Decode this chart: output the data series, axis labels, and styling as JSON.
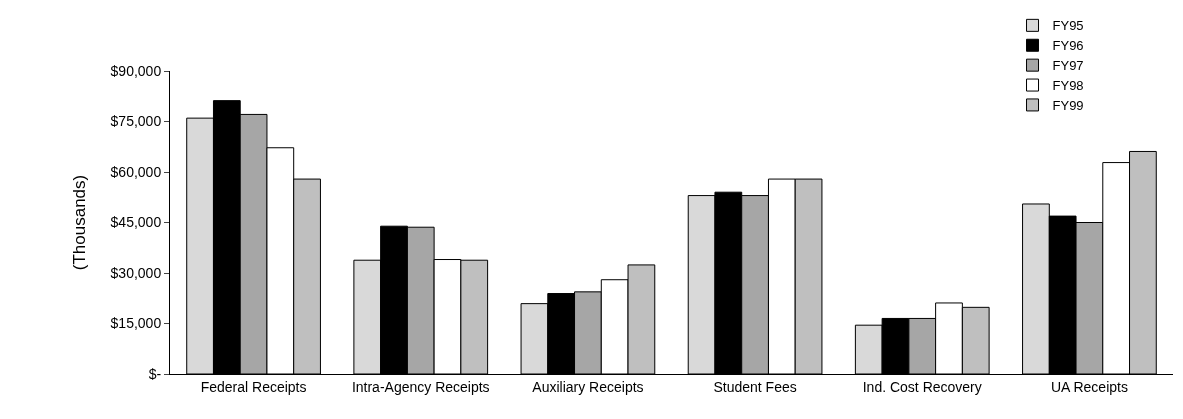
{
  "chart_data": {
    "type": "bar",
    "ylabel": "(Thousands)",
    "categories": [
      "Federal Receipts",
      "Intra-Agency Receipts",
      "Auxiliary Receipts",
      "Student Fees",
      "Ind. Cost Recovery",
      "UA Receipts"
    ],
    "series": [
      {
        "name": "FY95",
        "color": "#d9d9d9",
        "values": [
          76000,
          33800,
          20900,
          53000,
          14500,
          50500
        ]
      },
      {
        "name": "FY96",
        "color": "#000000",
        "values": [
          81200,
          43900,
          23900,
          54000,
          16500,
          46900
        ]
      },
      {
        "name": "FY97",
        "color": "#a6a6a6",
        "values": [
          77100,
          43600,
          24400,
          53000,
          16500,
          45000
        ]
      },
      {
        "name": "FY98",
        "color": "#ffffff",
        "values": [
          67200,
          34000,
          28000,
          57900,
          21100,
          62800
        ]
      },
      {
        "name": "FY99",
        "color": "#bfbfbf",
        "values": [
          57900,
          33800,
          32400,
          57900,
          19800,
          66100
        ]
      }
    ],
    "ylim": [
      0,
      90000
    ],
    "yticks": [
      {
        "value": 0,
        "label": "$-"
      },
      {
        "value": 15000,
        "label": "$15,000"
      },
      {
        "value": 30000,
        "label": "$30,000"
      },
      {
        "value": 45000,
        "label": "$45,000"
      },
      {
        "value": 60000,
        "label": "$60,000"
      },
      {
        "value": 75000,
        "label": "$75,000"
      },
      {
        "value": 90000,
        "label": "$90,000"
      }
    ],
    "grid": false,
    "legend": "top right"
  }
}
